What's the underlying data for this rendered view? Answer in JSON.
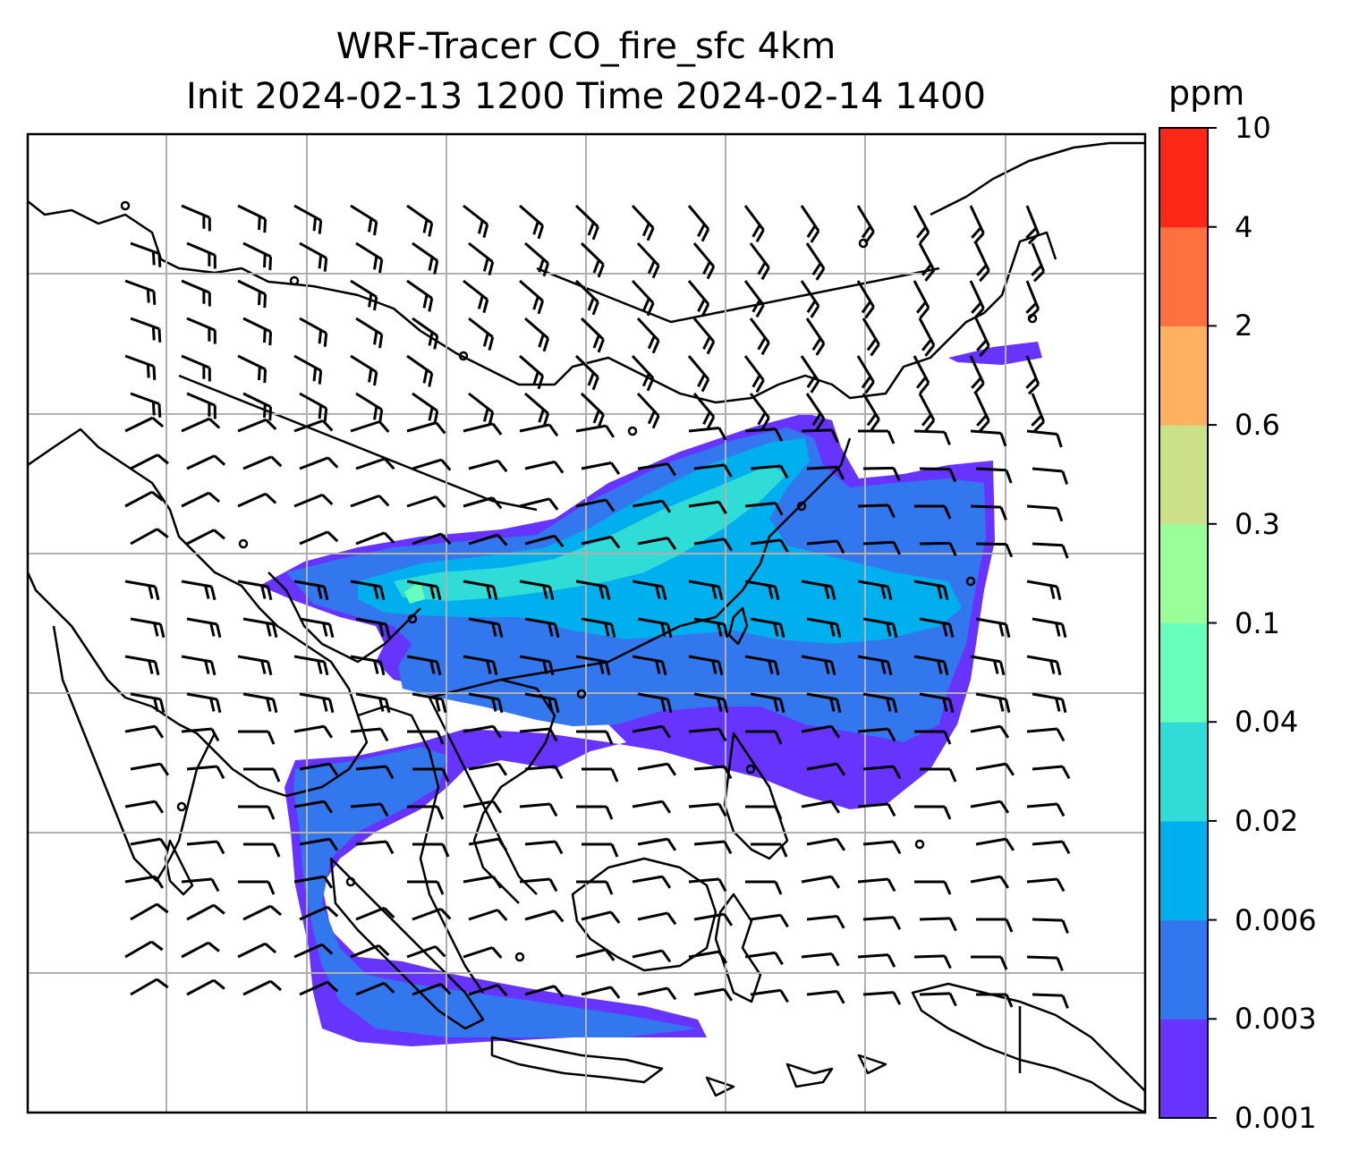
{
  "title": {
    "line1": "WRF-Tracer CO_fire_sfc 4km",
    "line2": "Init 2024-02-13 1200 Time 2024-02-14 1400"
  },
  "colorbar": {
    "unit": "ppm",
    "levels": [
      "0.001",
      "0.003",
      "0.006",
      "0.02",
      "0.04",
      "0.1",
      "0.3",
      "0.6",
      "2",
      "4",
      "10"
    ],
    "colors": [
      "#6633ff",
      "#3377ee",
      "#00b0ee",
      "#30dcd6",
      "#66ffbb",
      "#99ff99",
      "#cce088",
      "#ffb060",
      "#ff7040",
      "#ff2818"
    ]
  },
  "map": {
    "gridlines": true,
    "wind_barbs": true,
    "coastlines": true,
    "borders": true
  }
}
